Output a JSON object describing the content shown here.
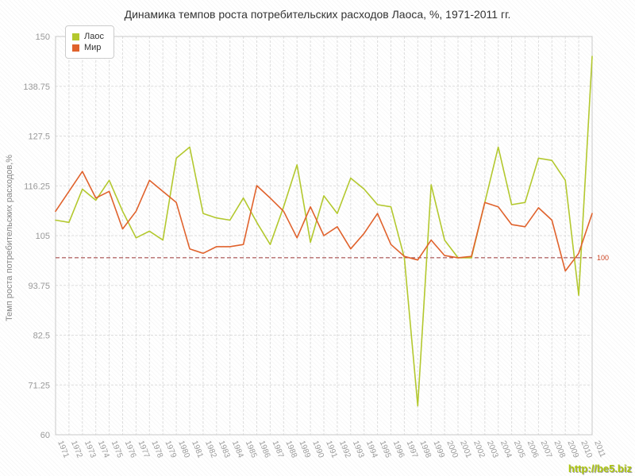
{
  "title": "Динамика темпов роста потребительских расходов Лаоса, %, 1971-2011 гг.",
  "watermark": "http://be5.biz",
  "colors": {
    "laos": "#b3c82e",
    "world": "#e0622c",
    "reference": "#993333",
    "grid": "#dddddd",
    "axis_text": "#999999"
  },
  "reference_line": {
    "value": 100,
    "label": "100"
  },
  "chart_data": {
    "type": "line",
    "title": "Динамика темпов роста потребительских расходов Лаоса, %, 1971-2011 гг.",
    "xlabel": "",
    "ylabel": "Темп роста потребительских расходов,%",
    "ylim": [
      60,
      150
    ],
    "yticks": [
      60,
      71.25,
      82.5,
      93.75,
      105,
      116.25,
      127.5,
      138.75,
      150
    ],
    "grid": true,
    "legend_position": "top-left",
    "x": [
      1971,
      1972,
      1973,
      1974,
      1975,
      1976,
      1977,
      1978,
      1979,
      1980,
      1981,
      1982,
      1983,
      1984,
      1985,
      1986,
      1987,
      1988,
      1989,
      1990,
      1991,
      1992,
      1993,
      1994,
      1995,
      1996,
      1997,
      1998,
      1999,
      2000,
      2001,
      2002,
      2003,
      2004,
      2005,
      2006,
      2007,
      2008,
      2009,
      2010,
      2011
    ],
    "series": [
      {
        "name": "Лаос",
        "color": "#b3c82e",
        "values": [
          108.5,
          108,
          115.5,
          113,
          117.5,
          110.5,
          104.5,
          106,
          104,
          122.5,
          125,
          110,
          109,
          108.5,
          113.5,
          108,
          103,
          111.5,
          121,
          103.5,
          114,
          110,
          118,
          115.5,
          112,
          111.5,
          100,
          66.5,
          116.5,
          104,
          100,
          100,
          112.5,
          125,
          112,
          112.5,
          122.5,
          122,
          117.5,
          91.5,
          145.5
        ]
      },
      {
        "name": "Мир",
        "color": "#e0622c",
        "values": [
          110.5,
          115,
          119.5,
          113.5,
          115,
          106.5,
          110.5,
          117.5,
          115,
          112.5,
          102,
          101,
          102.5,
          102.5,
          103,
          116.3,
          113.5,
          110.5,
          104.5,
          111.5,
          105,
          107,
          102,
          105.5,
          110,
          103,
          100.3,
          99.5,
          104,
          100.5,
          100,
          100.3,
          112.5,
          111.5,
          107.5,
          107,
          111.3,
          108.5,
          97,
          101,
          110
        ]
      }
    ]
  }
}
